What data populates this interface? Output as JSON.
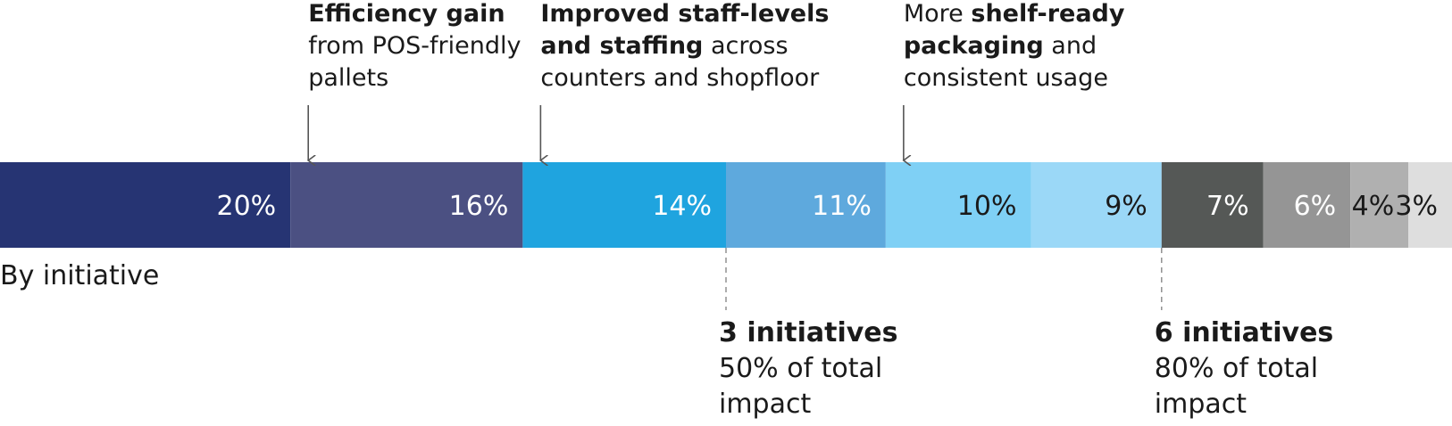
{
  "chart_data": {
    "type": "bar",
    "orientation": "horizontal-stacked",
    "row_label": "By initiative",
    "values": [
      20,
      16,
      14,
      11,
      10,
      9,
      7,
      6,
      4,
      3
    ],
    "value_labels": [
      "20%",
      "16%",
      "14%",
      "11%",
      "10%",
      "9%",
      "7%",
      "6%",
      "4%",
      "3%"
    ],
    "colors": [
      "#263473",
      "#4b5082",
      "#1fa4df",
      "#5ea9dd",
      "#7fd0f5",
      "#9bd8f7",
      "#555856",
      "#959595",
      "#b0b0b0",
      "#dedede"
    ],
    "label_colors": [
      "#ffffff",
      "#ffffff",
      "#ffffff",
      "#ffffff",
      "#1a1a1a",
      "#1a1a1a",
      "#ffffff",
      "#ffffff",
      "#1a1a1a",
      "#1a1a1a"
    ],
    "callouts": [
      {
        "segment": 1,
        "lines": [
          [
            {
              "t": "Efficiency gain",
              "b": true
            }
          ],
          [
            {
              "t": "from POS-friendly",
              "b": false
            }
          ],
          [
            {
              "t": "pallets",
              "b": false
            }
          ]
        ]
      },
      {
        "segment": 2,
        "lines": [
          [
            {
              "t": "Improved staff-levels",
              "b": true
            }
          ],
          [
            {
              "t": "and staffing",
              "b": true
            },
            {
              "t": " across",
              "b": false
            }
          ],
          [
            {
              "t": "counters and shopfloor",
              "b": false
            }
          ]
        ]
      },
      {
        "segment": 4,
        "lines": [
          [
            {
              "t": "More ",
              "b": false
            },
            {
              "t": "shelf-ready",
              "b": true
            }
          ],
          [
            {
              "t": "packaging",
              "b": true
            },
            {
              "t": " and",
              "b": false
            }
          ],
          [
            {
              "t": "consistent usage",
              "b": false
            }
          ]
        ]
      }
    ],
    "summaries": [
      {
        "after_segment": 2,
        "heading": "3 initiatives",
        "lines": [
          "50% of total",
          "impact"
        ]
      },
      {
        "after_segment": 5,
        "heading": "6 initiatives",
        "lines": [
          "80% of total",
          "impact"
        ]
      }
    ]
  }
}
